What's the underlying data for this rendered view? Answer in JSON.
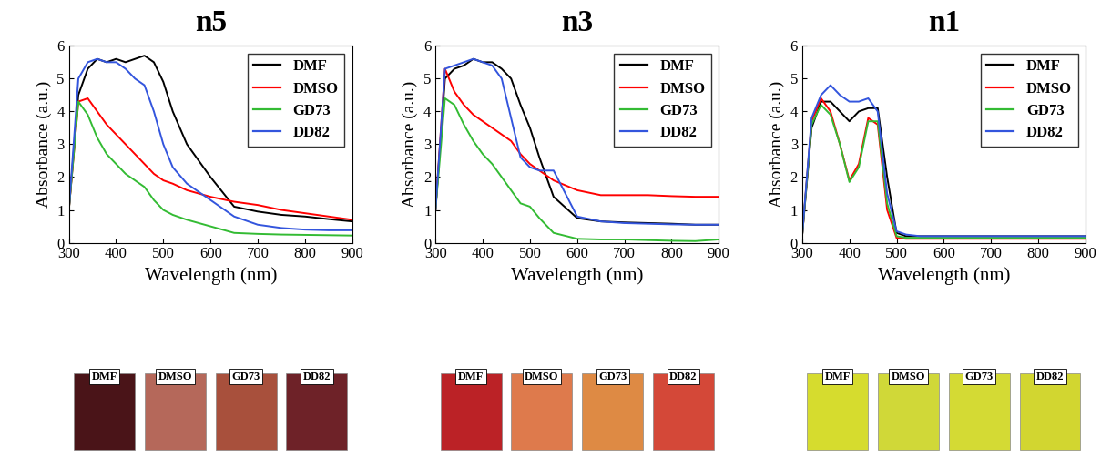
{
  "chart_data": [
    {
      "type": "line",
      "title": "n5",
      "x_label": "Wavelength (nm)",
      "y_label": "Absorbance (a.u.)",
      "xlim": [
        300,
        900
      ],
      "xticks": [
        300,
        400,
        500,
        600,
        700,
        800,
        900
      ],
      "ylim": [
        0,
        6
      ],
      "yticks": [
        0,
        1,
        2,
        3,
        4,
        5,
        6
      ],
      "legend": "upper right",
      "x": [
        300,
        320,
        340,
        360,
        380,
        400,
        420,
        440,
        460,
        480,
        500,
        520,
        550,
        600,
        650,
        700,
        750,
        800,
        850,
        900
      ],
      "series": [
        {
          "name": "DMF",
          "color": "#000000",
          "values": [
            1.0,
            4.5,
            5.3,
            5.6,
            5.5,
            5.6,
            5.5,
            5.6,
            5.7,
            5.5,
            4.9,
            4.0,
            3.0,
            2.0,
            1.1,
            0.95,
            0.85,
            0.8,
            0.72,
            0.65
          ]
        },
        {
          "name": "DMSO",
          "color": "#ff0000",
          "values": [
            1.0,
            4.3,
            4.4,
            4.0,
            3.6,
            3.3,
            3.0,
            2.7,
            2.4,
            2.1,
            1.9,
            1.8,
            1.6,
            1.4,
            1.25,
            1.15,
            1.0,
            0.9,
            0.8,
            0.7
          ]
        },
        {
          "name": "GD73",
          "color": "#33bb33",
          "values": [
            1.0,
            4.3,
            3.9,
            3.2,
            2.7,
            2.4,
            2.1,
            1.9,
            1.7,
            1.3,
            1.0,
            0.85,
            0.7,
            0.5,
            0.3,
            0.27,
            0.25,
            0.24,
            0.23,
            0.22
          ]
        },
        {
          "name": "DD82",
          "color": "#3355dd",
          "values": [
            1.0,
            5.0,
            5.5,
            5.6,
            5.5,
            5.5,
            5.3,
            5.0,
            4.8,
            4.0,
            3.0,
            2.3,
            1.8,
            1.3,
            0.8,
            0.55,
            0.45,
            0.4,
            0.38,
            0.38
          ]
        }
      ]
    },
    {
      "type": "line",
      "title": "n3",
      "x_label": "Wavelength (nm)",
      "y_label": "Absorbance (a.u.)",
      "xlim": [
        300,
        900
      ],
      "xticks": [
        300,
        400,
        500,
        600,
        700,
        800,
        900
      ],
      "ylim": [
        0,
        6
      ],
      "yticks": [
        0,
        1,
        2,
        3,
        4,
        5,
        6
      ],
      "legend": "upper right",
      "x": [
        300,
        320,
        340,
        360,
        380,
        400,
        420,
        440,
        460,
        480,
        500,
        520,
        550,
        600,
        650,
        700,
        750,
        800,
        850,
        900
      ],
      "series": [
        {
          "name": "DMF",
          "color": "#000000",
          "values": [
            1.0,
            5.0,
            5.3,
            5.4,
            5.6,
            5.5,
            5.5,
            5.3,
            5.0,
            4.2,
            3.5,
            2.6,
            1.4,
            0.75,
            0.65,
            0.62,
            0.6,
            0.58,
            0.55,
            0.55
          ]
        },
        {
          "name": "DMSO",
          "color": "#ff0000",
          "values": [
            1.0,
            5.3,
            4.6,
            4.2,
            3.9,
            3.7,
            3.5,
            3.3,
            3.1,
            2.7,
            2.4,
            2.2,
            1.9,
            1.6,
            1.45,
            1.45,
            1.45,
            1.42,
            1.4,
            1.4
          ]
        },
        {
          "name": "GD73",
          "color": "#33bb33",
          "values": [
            1.0,
            4.4,
            4.2,
            3.6,
            3.1,
            2.7,
            2.4,
            2.0,
            1.6,
            1.2,
            1.1,
            0.75,
            0.3,
            0.12,
            0.1,
            0.1,
            0.08,
            0.06,
            0.05,
            0.1
          ]
        },
        {
          "name": "DD82",
          "color": "#3355dd",
          "values": [
            1.0,
            5.3,
            5.4,
            5.5,
            5.6,
            5.5,
            5.4,
            5.0,
            3.8,
            2.6,
            2.3,
            2.2,
            2.2,
            0.8,
            0.65,
            0.6,
            0.58,
            0.56,
            0.55,
            0.55
          ]
        }
      ]
    },
    {
      "type": "line",
      "title": "n1",
      "x_label": "Wavelength (nm)",
      "y_label": "Absorbance (a.u.)",
      "xlim": [
        300,
        900
      ],
      "xticks": [
        300,
        400,
        500,
        600,
        700,
        800,
        900
      ],
      "ylim": [
        0,
        6
      ],
      "yticks": [
        0,
        1,
        2,
        3,
        4,
        5,
        6
      ],
      "legend": "upper right",
      "x": [
        300,
        320,
        340,
        360,
        380,
        400,
        420,
        440,
        460,
        480,
        500,
        520,
        550,
        600,
        650,
        700,
        750,
        800,
        850,
        900
      ],
      "series": [
        {
          "name": "DMF",
          "color": "#000000",
          "values": [
            0.2,
            3.5,
            4.3,
            4.3,
            4.0,
            3.7,
            4.0,
            4.1,
            4.1,
            2.0,
            0.3,
            0.2,
            0.2,
            0.2,
            0.2,
            0.2,
            0.2,
            0.2,
            0.2,
            0.2
          ]
        },
        {
          "name": "DMSO",
          "color": "#ff0000",
          "values": [
            0.2,
            3.7,
            4.4,
            4.0,
            3.0,
            1.9,
            2.4,
            3.8,
            3.6,
            1.0,
            0.15,
            0.12,
            0.12,
            0.12,
            0.12,
            0.12,
            0.12,
            0.12,
            0.12,
            0.12
          ]
        },
        {
          "name": "GD73",
          "color": "#33bb33",
          "values": [
            0.2,
            3.6,
            4.2,
            3.9,
            3.0,
            1.85,
            2.3,
            3.7,
            3.7,
            1.2,
            0.2,
            0.15,
            0.15,
            0.15,
            0.15,
            0.15,
            0.15,
            0.15,
            0.15,
            0.15
          ]
        },
        {
          "name": "DD82",
          "color": "#3355dd",
          "values": [
            0.2,
            3.8,
            4.5,
            4.8,
            4.5,
            4.3,
            4.3,
            4.4,
            4.0,
            1.5,
            0.35,
            0.25,
            0.2,
            0.2,
            0.2,
            0.2,
            0.2,
            0.2,
            0.2,
            0.2
          ]
        }
      ]
    }
  ]
}
